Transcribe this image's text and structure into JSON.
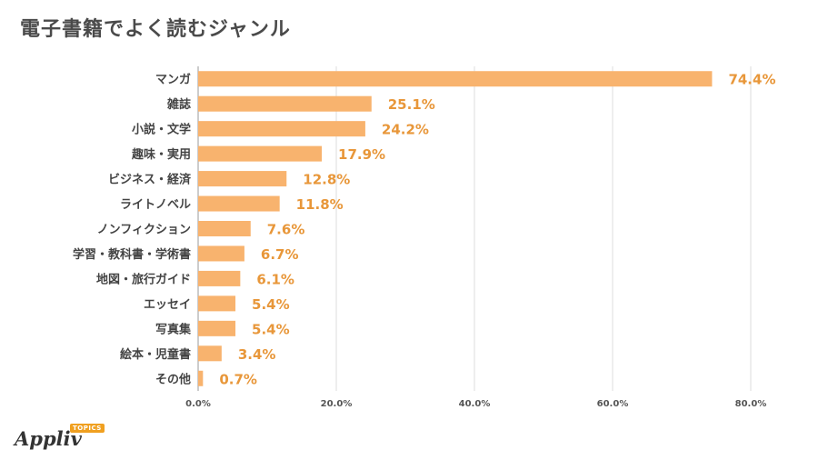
{
  "logo": {
    "word": "Appliv",
    "badge": "TOPICS"
  },
  "chart_data": {
    "type": "bar",
    "orientation": "horizontal",
    "title": "電子書籍でよく読むジャンル",
    "xlabel": "",
    "ylabel": "",
    "xlim": [
      0,
      80
    ],
    "grid": true,
    "bar_color": "#f8b36e",
    "value_label_color": "#e8973a",
    "categories": [
      "マンガ",
      "雑誌",
      "小説・文学",
      "趣味・実用",
      "ビジネス・経済",
      "ライトノベル",
      "ノンフィクション",
      "学習・教科書・学術書",
      "地図・旅行ガイド",
      "エッセイ",
      "写真集",
      "絵本・児童書",
      "その他"
    ],
    "values": [
      74.4,
      25.1,
      24.2,
      17.9,
      12.8,
      11.8,
      7.6,
      6.7,
      6.1,
      5.4,
      5.4,
      3.4,
      0.7
    ],
    "value_labels": [
      "74.4%",
      "25.1%",
      "24.2%",
      "17.9%",
      "12.8%",
      "11.8%",
      "7.6%",
      "6.7%",
      "6.1%",
      "5.4%",
      "5.4%",
      "3.4%",
      "0.7%"
    ],
    "x_ticks": [
      0,
      20,
      40,
      60,
      80
    ],
    "x_tick_labels": [
      "0.0%",
      "20.0%",
      "40.0%",
      "60.0%",
      "80.0%"
    ]
  }
}
